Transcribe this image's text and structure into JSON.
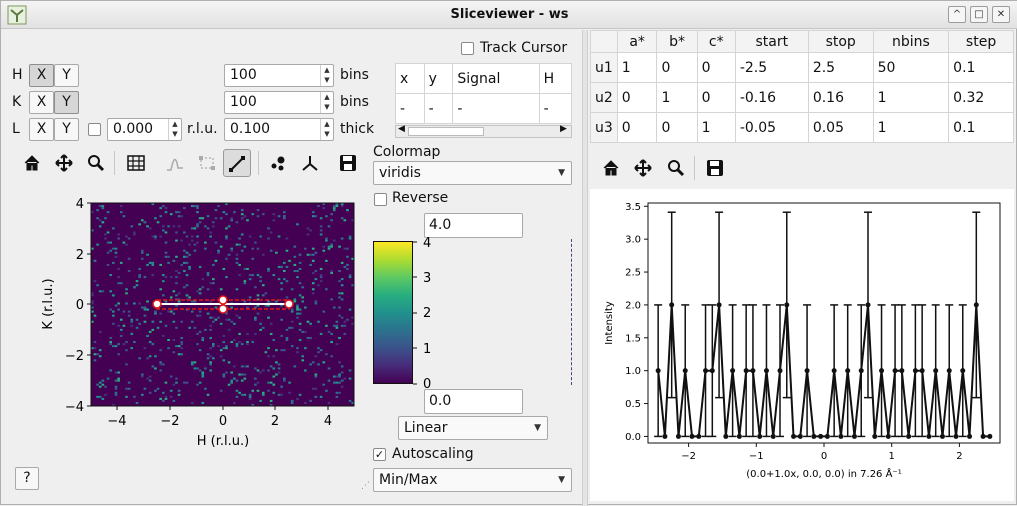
{
  "window": {
    "title": "Sliceviewer - ws"
  },
  "controls": {
    "track_cursor": "Track Cursor",
    "rows": [
      {
        "dim": "H",
        "x": "X",
        "y": "Y",
        "value": "100",
        "unit": "bins",
        "x_on": true,
        "y_on": false
      },
      {
        "dim": "K",
        "x": "X",
        "y": "Y",
        "value": "100",
        "unit": "bins",
        "x_on": false,
        "y_on": true
      },
      {
        "dim": "L",
        "x": "X",
        "y": "Y",
        "slice": "0.000",
        "slice_unit": "r.l.u.",
        "value": "0.100",
        "unit": "thick",
        "x_on": false,
        "y_on": false
      }
    ]
  },
  "cursor_table": {
    "headers": [
      "x",
      "y",
      "Signal",
      "H"
    ],
    "row": [
      "-",
      "-",
      "-",
      "-"
    ]
  },
  "colormap": {
    "label": "Colormap",
    "name": "viridis",
    "reverse": "Reverse",
    "max": "4.0",
    "min": "0.0",
    "scale": "Linear",
    "autoscaling": "Autoscaling",
    "mode": "Min/Max",
    "colorbar_ticks": [
      "0",
      "1",
      "2",
      "3",
      "4"
    ]
  },
  "slice_plot": {
    "xlabel": "H (r.l.u.)",
    "ylabel": "K (r.l.u.)",
    "xticks": [
      "−4",
      "−2",
      "0",
      "2",
      "4"
    ],
    "yticks": [
      "4",
      "2",
      "0",
      "−2",
      "−4"
    ]
  },
  "help_button": "?",
  "projection": {
    "headers": [
      "a*",
      "b*",
      "c*",
      "start",
      "stop",
      "nbins",
      "step"
    ],
    "rows": [
      {
        "name": "u1",
        "cells": [
          "1",
          "0",
          "0",
          "-2.5",
          "2.5",
          "50",
          "0.1"
        ]
      },
      {
        "name": "u2",
        "cells": [
          "0",
          "1",
          "0",
          "-0.16",
          "0.16",
          "1",
          "0.32"
        ]
      },
      {
        "name": "u3",
        "cells": [
          "0",
          "0",
          "1",
          "-0.05",
          "0.05",
          "1",
          "0.1"
        ]
      }
    ]
  },
  "chart_data": {
    "type": "line",
    "title": "",
    "xlabel": "(0.0+1.0x, 0.0, 0.0) in 7.26 Å⁻¹",
    "ylabel": "Intensity",
    "xlim": [
      -2.6,
      2.6
    ],
    "ylim": [
      -0.1,
      3.55
    ],
    "xticks": [
      -2,
      -1,
      0,
      1,
      2
    ],
    "yticks": [
      0.0,
      0.5,
      1.0,
      1.5,
      2.0,
      2.5,
      3.0,
      3.5
    ],
    "series": [
      {
        "x": [
          -2.45,
          -2.35,
          -2.25,
          -2.15,
          -2.05,
          -1.95,
          -1.85,
          -1.75,
          -1.65,
          -1.55,
          -1.45,
          -1.35,
          -1.25,
          -1.15,
          -1.05,
          -0.95,
          -0.85,
          -0.75,
          -0.65,
          -0.55,
          -0.45,
          -0.35,
          -0.25,
          -0.15,
          -0.05,
          0.05,
          0.15,
          0.25,
          0.35,
          0.45,
          0.55,
          0.65,
          0.75,
          0.85,
          0.95,
          1.05,
          1.15,
          1.25,
          1.35,
          1.45,
          1.55,
          1.65,
          1.75,
          1.85,
          1.95,
          2.05,
          2.15,
          2.25,
          2.35,
          2.45
        ],
        "y": [
          1,
          0,
          2,
          0,
          1,
          0,
          0,
          1,
          1,
          2,
          0,
          1,
          0,
          1,
          1,
          0,
          1,
          0,
          1,
          2,
          0,
          0,
          1,
          0,
          0,
          0,
          1,
          0,
          1,
          0,
          1,
          2,
          0,
          1,
          0,
          1,
          1,
          0,
          1,
          1,
          0,
          1,
          0,
          1,
          0,
          1,
          0,
          2,
          0,
          0
        ],
        "yerr": [
          1,
          0,
          1.41,
          0,
          1,
          0,
          0,
          1,
          1,
          1.41,
          0,
          1,
          0,
          1,
          1,
          0,
          1,
          0,
          1,
          1.41,
          0,
          0,
          1,
          0,
          0,
          0,
          1,
          0,
          1,
          0,
          1,
          1.41,
          0,
          1,
          0,
          1,
          1,
          0,
          1,
          1,
          0,
          1,
          0,
          1,
          0,
          1,
          0,
          1.41,
          0,
          0
        ]
      }
    ]
  }
}
